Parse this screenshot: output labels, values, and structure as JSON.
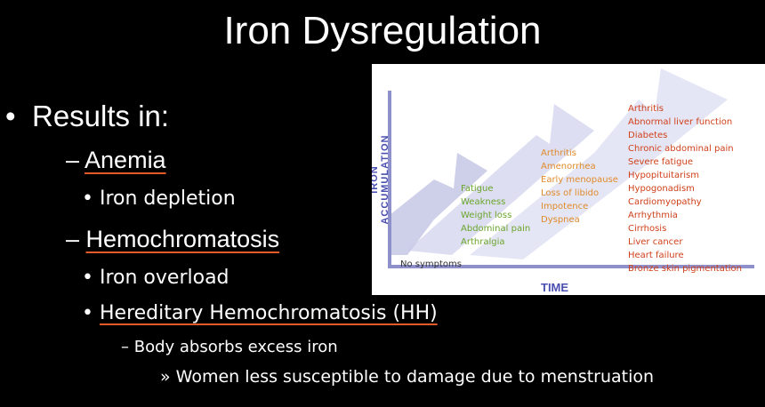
{
  "title": "Iron Dysregulation",
  "bullets": {
    "results_in": "Results in:",
    "anemia": "Anemia",
    "iron_depletion": "Iron depletion",
    "hemochromatosis": "Hemochromatosis",
    "iron_overload": "Iron overload",
    "hh": "Hereditary Hemochromatosis (HH)",
    "body_absorbs": "Body absorbs excess iron",
    "women": "Women less susceptible to damage due to menstruation"
  },
  "figure": {
    "y_label": "IRON ACCUMULATION",
    "x_label": "TIME",
    "stage0": "No symptoms",
    "stage1": [
      "Fatigue",
      "Weakness",
      "Weight loss",
      "Abdominal pain",
      "Arthralgia"
    ],
    "stage2": [
      "Arthritis",
      "Amenorrhea",
      "Early menopause",
      "Loss of libido",
      "Impotence",
      "Dyspnea"
    ],
    "stage3": [
      "Arthritis",
      "Abnormal liver function",
      "Diabetes",
      "Chronic abdominal pain",
      "Severe fatigue",
      "Hypopituitarism",
      "Hypogonadism",
      "Cardiomyopathy",
      "Arrhythmia",
      "Cirrhosis",
      "Liver cancer",
      "Heart failure",
      "Bronze skin pigmentation"
    ],
    "colors": {
      "stage1": "#6aa52a",
      "stage2": "#e08a2a",
      "stage3": "#d0401a",
      "axis": "#4a4fb0"
    }
  }
}
